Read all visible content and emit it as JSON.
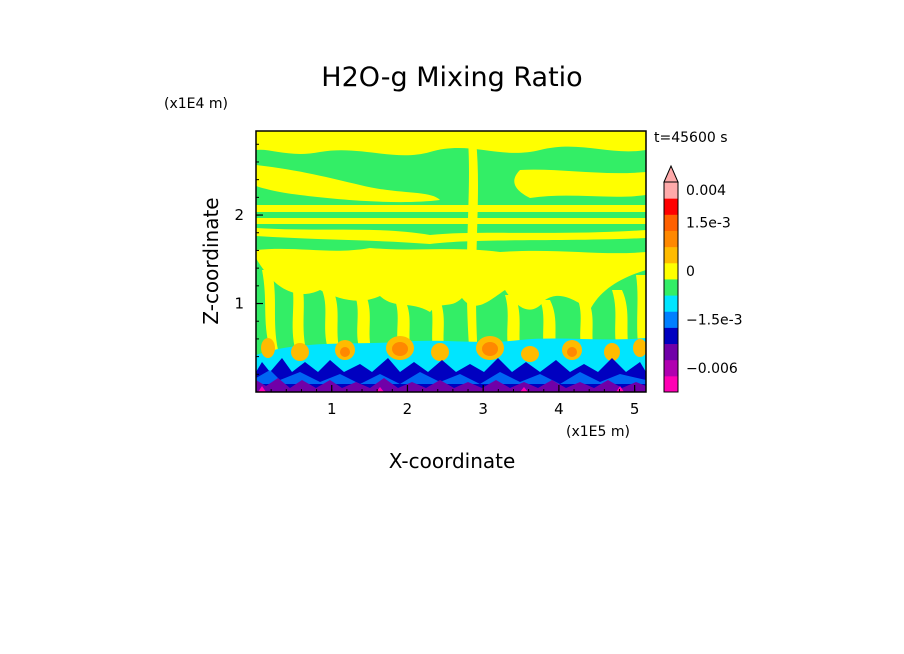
{
  "chart_data": {
    "type": "heatmap",
    "title": "H2O-g Mixing Ratio",
    "xlabel": "X-coordinate",
    "ylabel": "Z-coordinate",
    "x_scale_label": "(x1E5 m)",
    "y_scale_label": "(x1E4 m)",
    "time_label": "t=45600 s",
    "xlim": [
      0,
      5.15
    ],
    "ylim": [
      0,
      2.95
    ],
    "x_ticks": [
      "1",
      "2",
      "3",
      "4",
      "5"
    ],
    "x_tick_values": [
      1,
      2,
      3,
      4,
      5
    ],
    "y_ticks": [
      "1",
      "2"
    ],
    "y_tick_values": [
      1,
      2
    ],
    "colorbar": {
      "labels": [
        "0.004",
        "1.5e-3",
        "0",
        "−1.5e-3",
        "−0.006"
      ],
      "label_values": [
        0.004,
        0.0015,
        0,
        -0.0015,
        -0.006
      ],
      "levels": [
        {
          "color": "#ff00b4",
          "value": -0.007
        },
        {
          "color": "#b000b0",
          "value": -0.006
        },
        {
          "color": "#7000a8",
          "value": -0.004
        },
        {
          "color": "#0000c0",
          "value": -0.002
        },
        {
          "color": "#007fff",
          "value": -0.0015
        },
        {
          "color": "#00e5ff",
          "value": -0.001
        },
        {
          "color": "#33ee66",
          "value": -0.0005
        },
        {
          "color": "#ffff00",
          "value": 0
        },
        {
          "color": "#ffbb00",
          "value": 0.0005
        },
        {
          "color": "#ff8800",
          "value": 0.001
        },
        {
          "color": "#ff6000",
          "value": 0.0015
        },
        {
          "color": "#ff0000",
          "value": 0.002
        },
        {
          "color": "#ffaaaa",
          "value": 0.004
        }
      ]
    },
    "regions": [
      {
        "name": "upper-field",
        "z_range": [
          0.6,
          2.95
        ],
        "dominant": "green/yellow banded layers"
      },
      {
        "name": "mid-cyan-layer",
        "z_range": [
          0.3,
          0.6
        ],
        "dominant": "cyan"
      },
      {
        "name": "near-surface",
        "z_range": [
          0,
          0.3
        ],
        "dominant": "blue/purple plumes"
      }
    ]
  }
}
